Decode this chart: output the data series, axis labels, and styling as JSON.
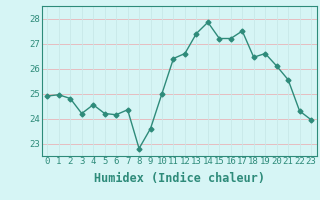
{
  "x": [
    0,
    1,
    2,
    3,
    4,
    5,
    6,
    7,
    8,
    9,
    10,
    11,
    12,
    13,
    14,
    15,
    16,
    17,
    18,
    19,
    20,
    21,
    22,
    23
  ],
  "y": [
    24.9,
    24.95,
    24.8,
    24.2,
    24.55,
    24.2,
    24.15,
    24.35,
    22.8,
    23.6,
    25.0,
    26.4,
    26.6,
    27.4,
    27.85,
    27.2,
    27.2,
    27.5,
    26.45,
    26.6,
    26.1,
    25.55,
    24.3,
    23.95
  ],
  "line_color": "#2e8b7a",
  "marker": "D",
  "marker_size": 2.5,
  "bg_color": "#d6f5f5",
  "grid_color_h": "#e8b4b8",
  "grid_color_v": "#c8e8e8",
  "axis_color": "#2e8b7a",
  "tick_color": "#2e8b7a",
  "xlabel": "Humidex (Indice chaleur)",
  "xlim": [
    -0.5,
    23.5
  ],
  "ylim": [
    22.5,
    28.5
  ],
  "yticks": [
    23,
    24,
    25,
    26,
    27,
    28
  ],
  "xticks": [
    0,
    1,
    2,
    3,
    4,
    5,
    6,
    7,
    8,
    9,
    10,
    11,
    12,
    13,
    14,
    15,
    16,
    17,
    18,
    19,
    20,
    21,
    22,
    23
  ],
  "tick_fontsize": 6.5,
  "xlabel_fontsize": 8.5
}
